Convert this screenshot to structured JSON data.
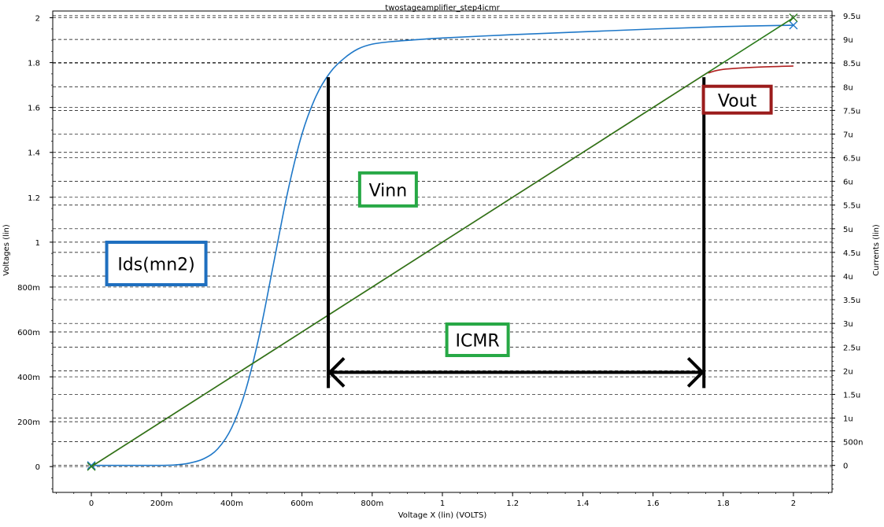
{
  "chart_data": {
    "type": "line",
    "title": "twostageamplifier_step4icmr",
    "xlabel": "Voltage X (lin) (VOLTS)",
    "ylabel_left": "Voltages (lin)",
    "ylabel_right": "Currents (lin)",
    "xlim": [
      -0.11,
      2.11
    ],
    "ylim_left": [
      -0.115,
      2.03
    ],
    "ylim_right": [
      -5.7e-07,
      9.6e-06
    ],
    "grid": true,
    "x_ticks": [
      {
        "v": 0,
        "label": "0"
      },
      {
        "v": 0.2,
        "label": "200m"
      },
      {
        "v": 0.4,
        "label": "400m"
      },
      {
        "v": 0.6,
        "label": "600m"
      },
      {
        "v": 0.8,
        "label": "800m"
      },
      {
        "v": 1.0,
        "label": "1"
      },
      {
        "v": 1.2,
        "label": "1.2"
      },
      {
        "v": 1.4,
        "label": "1.4"
      },
      {
        "v": 1.6,
        "label": "1.6"
      },
      {
        "v": 1.8,
        "label": "1.8"
      },
      {
        "v": 2.0,
        "label": "2"
      }
    ],
    "y_left_ticks": [
      {
        "v": 0,
        "label": "0"
      },
      {
        "v": 0.2,
        "label": "200m"
      },
      {
        "v": 0.4,
        "label": "400m"
      },
      {
        "v": 0.6,
        "label": "600m"
      },
      {
        "v": 0.8,
        "label": "800m"
      },
      {
        "v": 1.0,
        "label": "1"
      },
      {
        "v": 1.2,
        "label": "1.2"
      },
      {
        "v": 1.4,
        "label": "1.4"
      },
      {
        "v": 1.6,
        "label": "1.6"
      },
      {
        "v": 1.8,
        "label": "1.8"
      },
      {
        "v": 2.0,
        "label": "2"
      }
    ],
    "y_right_ticks": [
      {
        "v": 0,
        "label": "0"
      },
      {
        "v": 5e-07,
        "label": "500n"
      },
      {
        "v": 1e-06,
        "label": "1u"
      },
      {
        "v": 1.5e-06,
        "label": "1.5u"
      },
      {
        "v": 2e-06,
        "label": "2u"
      },
      {
        "v": 2.5e-06,
        "label": "2.5u"
      },
      {
        "v": 3e-06,
        "label": "3u"
      },
      {
        "v": 3.5e-06,
        "label": "3.5u"
      },
      {
        "v": 4e-06,
        "label": "4u"
      },
      {
        "v": 4.5e-06,
        "label": "4.5u"
      },
      {
        "v": 5e-06,
        "label": "5u"
      },
      {
        "v": 5.5e-06,
        "label": "5.5u"
      },
      {
        "v": 6e-06,
        "label": "6u"
      },
      {
        "v": 6.5e-06,
        "label": "6.5u"
      },
      {
        "v": 7e-06,
        "label": "7u"
      },
      {
        "v": 7.5e-06,
        "label": "7.5u"
      },
      {
        "v": 8e-06,
        "label": "8u"
      },
      {
        "v": 8.5e-06,
        "label": "8.5u"
      },
      {
        "v": 9e-06,
        "label": "9u"
      },
      {
        "v": 9.5e-06,
        "label": "9.5u"
      }
    ],
    "series": [
      {
        "axis": "right",
        "color": "#1f78c8",
        "marker": "x",
        "x": [
          0,
          0.1,
          0.2,
          0.24,
          0.28,
          0.32,
          0.36,
          0.4,
          0.44,
          0.48,
          0.52,
          0.56,
          0.6,
          0.64,
          0.68,
          0.72,
          0.76,
          0.8,
          0.85,
          0.9,
          1.0,
          1.2,
          1.4,
          1.6,
          1.8,
          2.0
        ],
        "y": [
          0,
          0,
          0,
          1e-08,
          5e-08,
          1.4e-07,
          3.5e-07,
          8e-07,
          1.6e-06,
          2.8e-06,
          4.3e-06,
          5.8e-06,
          7e-06,
          7.8e-06,
          8.3e-06,
          8.6e-06,
          8.8e-06,
          8.9e-06,
          8.95e-06,
          8.98e-06,
          9.03e-06,
          9.1e-06,
          9.16e-06,
          9.22e-06,
          9.27e-06,
          9.3e-06
        ]
      },
      {
        "axis": "left",
        "color": "#2a7a1a",
        "marker": "x",
        "x": [
          0,
          0.5,
          1.0,
          1.5,
          2.0
        ],
        "y": [
          0,
          0.5,
          1.0,
          1.5,
          2.0
        ]
      },
      {
        "axis": "left",
        "color": "#b02020",
        "marker": "none",
        "x": [
          0,
          0.5,
          1.0,
          1.5,
          1.74,
          1.76,
          1.8,
          1.9,
          2.0
        ],
        "y": [
          0,
          0.5,
          1.0,
          1.5,
          1.74,
          1.755,
          1.77,
          1.78,
          1.785
        ]
      }
    ],
    "annotations": [
      {
        "text": "Ids(mn2)",
        "box_color": "#1f6fbf"
      },
      {
        "text": "Vinn",
        "box_color": "#27a845"
      },
      {
        "text": "Vout",
        "box_color": "#9b1c1c"
      },
      {
        "text": "ICMR",
        "box_color": "#27a845"
      }
    ],
    "icmr": {
      "x_start": 0.675,
      "x_end": 1.745,
      "y_top": 1.735,
      "y_arrow": 0.42,
      "y_bottom": 0.35,
      "color": "#000000"
    }
  }
}
